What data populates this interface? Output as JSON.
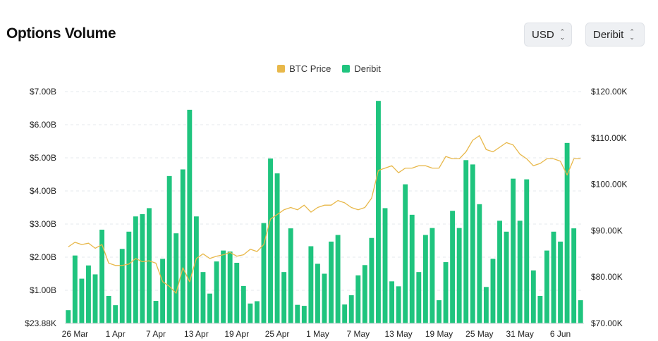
{
  "header": {
    "title": "Options Volume",
    "currency_select": "USD",
    "exchange_select": "Deribit"
  },
  "colors": {
    "btc_price": "#e8b84a",
    "deribit": "#1fc47e",
    "grid": "#e6e8ec"
  },
  "chart_data": {
    "type": "bar",
    "title": "Options Volume",
    "legend_position": "top-center",
    "grid": true,
    "x_ticks": [
      "26 Mar",
      "1 Apr",
      "7 Apr",
      "13 Apr",
      "19 Apr",
      "25 Apr",
      "1 May",
      "7 May",
      "13 May",
      "19 May",
      "25 May",
      "31 May",
      "6 Jun"
    ],
    "y_left": {
      "ticks": [
        "$23.88K",
        "$1.00B",
        "$2.00B",
        "$3.00B",
        "$4.00B",
        "$5.00B",
        "$6.00B",
        "$7.00B"
      ],
      "range": [
        0,
        7.0
      ],
      "unit": "B USD"
    },
    "y_right": {
      "ticks": [
        "$70.00K",
        "$80.00K",
        "$90.00K",
        "$100.00K",
        "$110.00K",
        "$120.00K"
      ],
      "range": [
        70,
        120
      ],
      "unit": "K USD"
    },
    "series": [
      {
        "name": "Deribit",
        "type": "bar",
        "axis": "left",
        "values": [
          0.4,
          2.05,
          1.35,
          1.75,
          1.48,
          2.83,
          0.83,
          0.55,
          2.25,
          2.77,
          3.23,
          3.3,
          3.48,
          0.68,
          1.95,
          4.45,
          2.72,
          4.65,
          6.45,
          3.23,
          1.55,
          0.9,
          1.87,
          2.2,
          2.17,
          1.83,
          1.13,
          0.6,
          0.67,
          3.03,
          4.98,
          4.53,
          1.55,
          2.87,
          0.56,
          0.53,
          2.33,
          1.8,
          1.5,
          2.47,
          2.67,
          0.57,
          0.85,
          1.45,
          1.76,
          2.58,
          6.72,
          3.48,
          1.27,
          1.12,
          4.2,
          3.28,
          1.55,
          2.67,
          2.88,
          0.7,
          1.85,
          3.4,
          2.88,
          4.93,
          4.8,
          3.6,
          1.1,
          1.95,
          3.1,
          2.77,
          4.37,
          3.1,
          4.35,
          1.6,
          0.83,
          2.2,
          2.77,
          2.47,
          5.45,
          2.87,
          0.7
        ]
      },
      {
        "name": "BTC Price",
        "type": "line",
        "axis": "right",
        "values": [
          86.5,
          87.5,
          87.0,
          87.3,
          86.2,
          87.0,
          83.0,
          82.5,
          82.5,
          82.8,
          84.0,
          83.3,
          83.5,
          83.0,
          79.0,
          78.0,
          76.5,
          82.0,
          79.0,
          84.0,
          85.0,
          84.0,
          84.5,
          84.8,
          85.3,
          84.5,
          84.8,
          86.0,
          85.5,
          87.0,
          92.5,
          93.5,
          94.5,
          95.0,
          94.5,
          95.5,
          94.0,
          95.0,
          95.5,
          95.5,
          96.5,
          96.0,
          95.0,
          94.5,
          95.0,
          97.0,
          103.0,
          103.5,
          104.0,
          102.5,
          103.5,
          103.5,
          104.0,
          104.0,
          103.5,
          103.5,
          106.0,
          105.5,
          105.5,
          107.0,
          109.5,
          110.5,
          107.5,
          107.0,
          108.0,
          109.0,
          108.5,
          106.5,
          105.5,
          104.0,
          104.5,
          105.5,
          105.5,
          105.0,
          102.0,
          105.5,
          105.5
        ]
      }
    ]
  }
}
